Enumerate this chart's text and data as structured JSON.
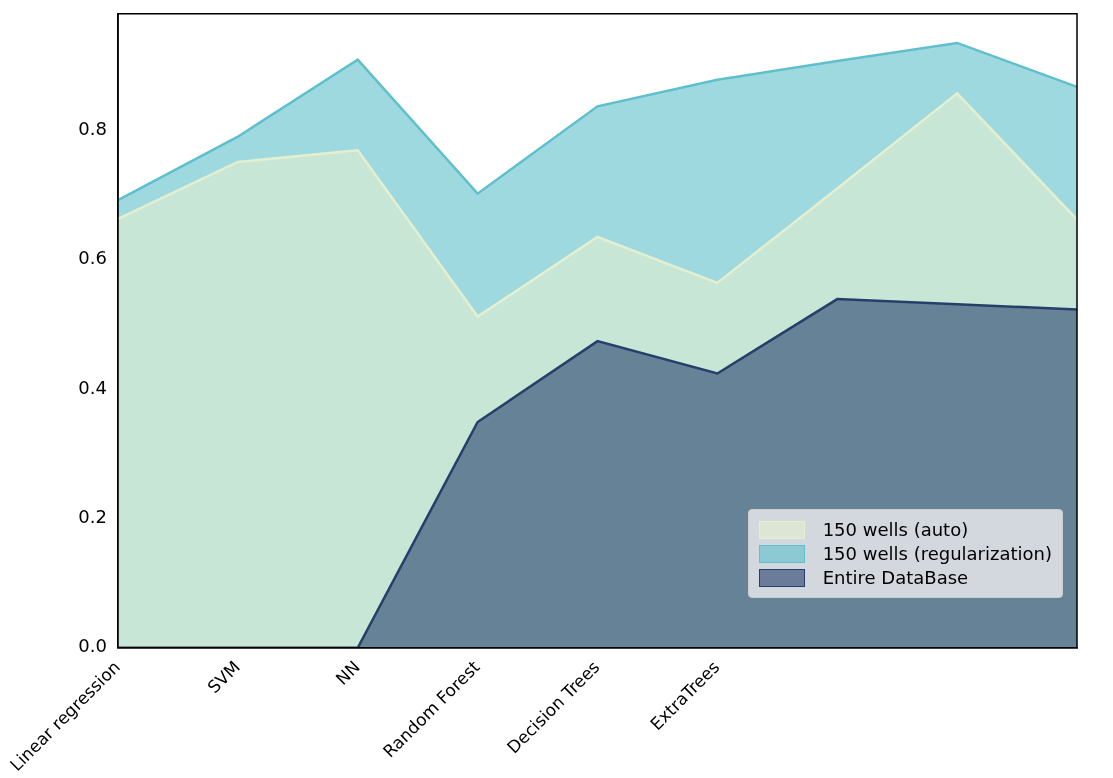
{
  "chart_data": {
    "type": "area",
    "categories": [
      "Linear regression",
      "SVM",
      "NN",
      "Random Forest",
      "Decision Trees",
      "ExtraTrees",
      null,
      null,
      null
    ],
    "series": [
      {
        "name": "150 wells (auto)",
        "color": "#e4efcf",
        "values": [
          0.663,
          0.751,
          0.769,
          0.512,
          0.635,
          0.564,
          0.71,
          0.857,
          0.662
        ]
      },
      {
        "name": "150 wells (regularization)",
        "color": "#5fbfcc",
        "values": [
          0.692,
          0.79,
          0.909,
          0.702,
          0.837,
          0.878,
          0.907,
          0.935,
          0.867
        ]
      },
      {
        "name": "Entire DataBase",
        "color": "#253f6a",
        "values": [
          0,
          0,
          0,
          0.349,
          0.474,
          0.424,
          0.539,
          0.531,
          0.523
        ]
      }
    ],
    "ylim": [
      0,
      0.98
    ],
    "yticks": [
      {
        "value": 0,
        "label": "0.0"
      },
      {
        "value": 0.2,
        "label": "0.2"
      },
      {
        "value": 0.4,
        "label": "0.4"
      },
      {
        "value": 0.6,
        "label": "0.6"
      },
      {
        "value": 0.8,
        "label": "0.8"
      }
    ],
    "grid": false,
    "legend": "bottom right"
  }
}
